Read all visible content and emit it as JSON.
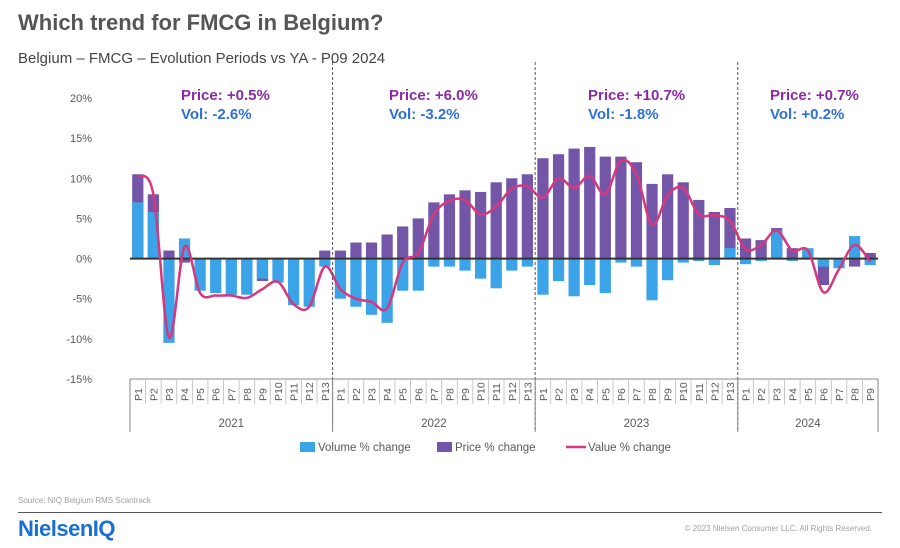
{
  "header": {
    "title": "Which trend for FMCG in Belgium?",
    "subtitle": "Belgium – FMCG – Evolution Periods vs YA - P09 2024"
  },
  "footer": {
    "source": "Source: NIQ Belgium RMS Scantrack",
    "brand": "NielsenIQ",
    "copyright": "© 2023 Nielsen Consumer LLC. All Rights Reserved."
  },
  "colors": {
    "volume": "#3ba3e8",
    "price": "#7456a8",
    "value": "#d6377f",
    "annotation_price": "#8a2aa4",
    "annotation_vol": "#2f6fd8"
  },
  "chart_data": {
    "type": "bar",
    "title": "Belgium – FMCG – Evolution Periods vs YA - P09 2024",
    "ylim": [
      -15,
      20
    ],
    "yticks": [
      "20%",
      "15%",
      "10%",
      "5%",
      "0%",
      "-5%",
      "-10%",
      "-15%"
    ],
    "years": [
      {
        "year": "2021",
        "periods": [
          "P1",
          "P2",
          "P3",
          "P4",
          "P5",
          "P6",
          "P7",
          "P8",
          "P9",
          "P10",
          "P11",
          "P12",
          "P13"
        ]
      },
      {
        "year": "2022",
        "periods": [
          "P1",
          "P2",
          "P3",
          "P4",
          "P5",
          "P6",
          "P7",
          "P8",
          "P9",
          "P10",
          "P11",
          "P12",
          "P13"
        ]
      },
      {
        "year": "2023",
        "periods": [
          "P1",
          "P2",
          "P3",
          "P4",
          "P5",
          "P6",
          "P7",
          "P8",
          "P9",
          "P10",
          "P11",
          "P12",
          "P13"
        ]
      },
      {
        "year": "2024",
        "periods": [
          "P1",
          "P2",
          "P3",
          "P4",
          "P5",
          "P6",
          "P7",
          "P8",
          "P9"
        ]
      }
    ],
    "series": [
      {
        "name": "Volume % change",
        "values": [
          7.0,
          5.8,
          -10.5,
          2.5,
          -4.0,
          -4.3,
          -4.5,
          -4.5,
          -2.5,
          -3.0,
          -5.8,
          -6.0,
          -1.0,
          -5.0,
          -6.0,
          -7.0,
          -8.0,
          -4.0,
          -4.0,
          -1.0,
          -1.0,
          -1.5,
          -2.5,
          -3.7,
          -1.5,
          -1.0,
          -4.5,
          -2.8,
          -4.7,
          -3.3,
          -4.3,
          -0.5,
          -1.0,
          -5.2,
          -2.7,
          -0.5,
          -0.3,
          -0.8,
          1.3,
          -0.7,
          -0.3,
          3.5,
          -0.3,
          1.3,
          -1.0,
          -1.2,
          2.8,
          -0.8
        ]
      },
      {
        "name": "Price % change",
        "values": [
          10.5,
          8.0,
          1.0,
          -0.5,
          -0.3,
          -0.4,
          -0.5,
          -4.0,
          -2.8,
          -2.5,
          -0.3,
          -0.3,
          1.0,
          1.0,
          2.0,
          2.0,
          3.0,
          4.0,
          5.0,
          7.0,
          8.0,
          8.5,
          8.3,
          9.5,
          10.0,
          10.5,
          12.5,
          13.0,
          13.7,
          13.9,
          12.7,
          12.7,
          12.0,
          9.3,
          10.5,
          9.5,
          7.3,
          5.8,
          6.3,
          2.5,
          2.3,
          3.8,
          1.3,
          1.0,
          -3.3,
          -0.3,
          -1.0,
          0.7
        ]
      },
      {
        "name": "Value % change",
        "values": [
          10.3,
          8.0,
          -9.8,
          1.5,
          -4.3,
          -4.6,
          -4.6,
          -4.9,
          -3.8,
          -2.9,
          -5.7,
          -6.0,
          -1.0,
          -3.8,
          -5.0,
          -5.4,
          -6.2,
          -0.5,
          0.7,
          5.5,
          7.2,
          7.3,
          5.5,
          6.5,
          8.7,
          9.0,
          7.6,
          10.0,
          8.8,
          10.3,
          8.0,
          12.2,
          10.5,
          4.2,
          7.9,
          8.8,
          5.5,
          5.4,
          4.7,
          1.2,
          1.7,
          3.5,
          1.0,
          1.0,
          -4.2,
          -1.3,
          1.7,
          -0.4
        ]
      }
    ],
    "annotations": [
      {
        "year": "2021",
        "price": "Price: +0.5%",
        "vol": "Vol: -2.6%"
      },
      {
        "year": "2022",
        "price": "Price: +6.0%",
        "vol": "Vol: -3.2%"
      },
      {
        "year": "2023",
        "price": "Price: +10.7%",
        "vol": "Vol: -1.8%"
      },
      {
        "year": "2024",
        "price": "Price: +0.7%",
        "vol": "Vol: +0.2%"
      }
    ],
    "legend": [
      "Volume % change",
      "Price % change",
      "Value % change"
    ]
  }
}
